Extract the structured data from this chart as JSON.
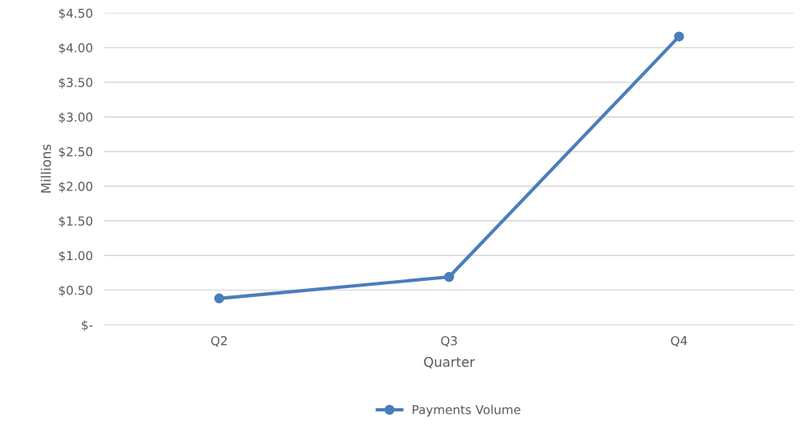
{
  "chart_data": {
    "type": "line",
    "xlabel": "Quarter",
    "ylabel": "Millions",
    "categories": [
      "Q2",
      "Q3",
      "Q4"
    ],
    "series": [
      {
        "name": "Payments Volume",
        "color": "#4a7ebb",
        "values": [
          0.38,
          0.69,
          4.16
        ]
      }
    ],
    "ylim": [
      0,
      4.5
    ],
    "yticks": [
      {
        "value": 0,
        "label": "$-"
      },
      {
        "value": 0.5,
        "label": "$0.50"
      },
      {
        "value": 1,
        "label": "$1.00"
      },
      {
        "value": 1.5,
        "label": "$1.50"
      },
      {
        "value": 2,
        "label": "$2.00"
      },
      {
        "value": 2.5,
        "label": "$2.50"
      },
      {
        "value": 3,
        "label": "$3.00"
      },
      {
        "value": 3.5,
        "label": "$3.50"
      },
      {
        "value": 4,
        "label": "$4.00"
      },
      {
        "value": 4.5,
        "label": "$4.50"
      }
    ],
    "grid": "y",
    "legend": "bottom",
    "marker": "circle",
    "line_style": "solid"
  }
}
